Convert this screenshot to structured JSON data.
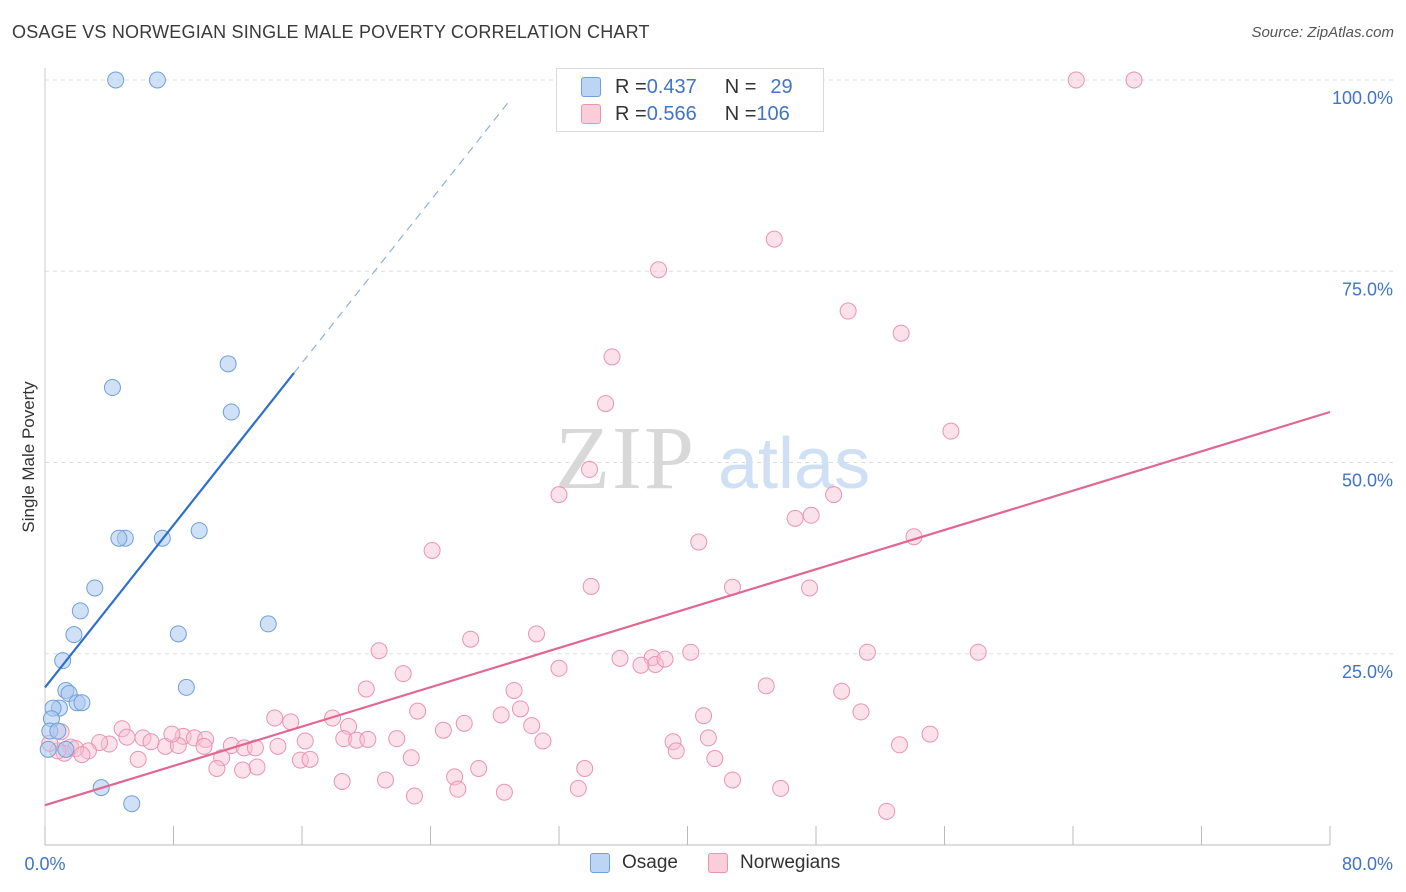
{
  "title": "OSAGE VS NORWEGIAN SINGLE MALE POVERTY CORRELATION CHART",
  "source": "Source: ZipAtlas.com",
  "watermark": {
    "zip": "ZIP",
    "atlas": "atlas"
  },
  "legend_top": {
    "rows": [
      {
        "r_label": "R = ",
        "r_value": "0.437",
        "n_label": "N = ",
        "n_value": "29"
      },
      {
        "r_label": "R = ",
        "r_value": "0.566",
        "n_label": "N = ",
        "n_value": "106"
      }
    ]
  },
  "legend_bottom": {
    "osage": "Osage",
    "norwegians": "Norwegians"
  },
  "colors": {
    "osage_fill": "#a9c8f0",
    "osage_stroke": "#6f9fdc",
    "osage_line": "#2f6fcc",
    "norw_fill": "#f6bfd0",
    "norw_stroke": "#eb93b1",
    "norw_line": "#e06792",
    "tick_label": "#3f74c8",
    "grid": "#dddddd"
  },
  "chart_data": {
    "type": "scatter",
    "xlabel": "",
    "ylabel": "Single Male Poverty",
    "xlim": [
      0,
      80
    ],
    "ylim": [
      0,
      100
    ],
    "x_tick_labels": [
      "0.0%",
      "80.0%"
    ],
    "y_ticks": [
      25,
      50,
      75,
      100
    ],
    "y_tick_labels": [
      "25.0%",
      "50.0%",
      "75.0%",
      "100.0%"
    ],
    "grid": true,
    "legend_position": "top-center",
    "series": [
      {
        "name": "Osage",
        "r": 0.437,
        "n": 29,
        "trend": {
          "x0": 0,
          "y0": 20.6,
          "x1": 15.5,
          "y1": 61.7,
          "extend_to_x": 29
        },
        "points": [
          [
            4.4,
            100
          ],
          [
            7.0,
            100
          ],
          [
            4.2,
            59.8
          ],
          [
            11.4,
            62.9
          ],
          [
            11.6,
            56.6
          ],
          [
            5.0,
            40.1
          ],
          [
            4.6,
            40.1
          ],
          [
            7.3,
            40.1
          ],
          [
            9.6,
            41.1
          ],
          [
            3.1,
            33.6
          ],
          [
            2.2,
            30.6
          ],
          [
            1.8,
            27.5
          ],
          [
            8.3,
            27.6
          ],
          [
            13.9,
            28.9
          ],
          [
            1.1,
            24.1
          ],
          [
            1.3,
            20.2
          ],
          [
            1.5,
            19.8
          ],
          [
            8.8,
            20.6
          ],
          [
            2.0,
            18.6
          ],
          [
            2.3,
            18.6
          ],
          [
            0.9,
            17.9
          ],
          [
            0.5,
            17.9
          ],
          [
            0.4,
            16.5
          ],
          [
            0.3,
            14.9
          ],
          [
            0.8,
            14.9
          ],
          [
            0.2,
            12.5
          ],
          [
            1.3,
            12.5
          ],
          [
            3.5,
            7.5
          ],
          [
            5.4,
            5.4
          ]
        ]
      },
      {
        "name": "Norwegians",
        "r": 0.566,
        "n": 106,
        "trend": {
          "x0": 0,
          "y0": 5.2,
          "x1": 80,
          "y1": 56.6
        },
        "points": [
          [
            64.2,
            100
          ],
          [
            67.8,
            100
          ],
          [
            45.4,
            79.2
          ],
          [
            38.2,
            75.2
          ],
          [
            50.0,
            69.8
          ],
          [
            53.3,
            66.9
          ],
          [
            35.3,
            63.8
          ],
          [
            34.9,
            57.7
          ],
          [
            56.4,
            54.1
          ],
          [
            33.9,
            49.1
          ],
          [
            32.0,
            45.8
          ],
          [
            49.1,
            45.8
          ],
          [
            47.7,
            43.1
          ],
          [
            46.7,
            42.7
          ],
          [
            40.7,
            39.6
          ],
          [
            54.1,
            40.3
          ],
          [
            24.1,
            38.5
          ],
          [
            34.0,
            33.8
          ],
          [
            42.8,
            33.7
          ],
          [
            47.6,
            33.6
          ],
          [
            26.5,
            26.9
          ],
          [
            30.6,
            27.6
          ],
          [
            20.8,
            25.4
          ],
          [
            37.8,
            24.5
          ],
          [
            35.8,
            24.4
          ],
          [
            38.0,
            23.6
          ],
          [
            37.1,
            23.5
          ],
          [
            38.6,
            24.3
          ],
          [
            40.2,
            25.2
          ],
          [
            51.2,
            25.2
          ],
          [
            58.1,
            25.2
          ],
          [
            32.0,
            23.1
          ],
          [
            22.3,
            22.4
          ],
          [
            20.0,
            20.4
          ],
          [
            29.2,
            20.2
          ],
          [
            44.9,
            20.8
          ],
          [
            49.6,
            20.1
          ],
          [
            23.2,
            17.5
          ],
          [
            29.6,
            17.8
          ],
          [
            28.4,
            17.0
          ],
          [
            41.0,
            16.9
          ],
          [
            50.8,
            17.4
          ],
          [
            14.3,
            16.6
          ],
          [
            15.3,
            16.1
          ],
          [
            17.9,
            16.6
          ],
          [
            18.9,
            15.5
          ],
          [
            24.8,
            15.0
          ],
          [
            26.1,
            15.9
          ],
          [
            30.3,
            15.6
          ],
          [
            4.8,
            15.2
          ],
          [
            8.6,
            14.2
          ],
          [
            9.3,
            14.0
          ],
          [
            10.0,
            13.8
          ],
          [
            11.6,
            13.0
          ],
          [
            12.4,
            12.7
          ],
          [
            14.5,
            12.9
          ],
          [
            16.2,
            13.6
          ],
          [
            18.6,
            13.9
          ],
          [
            19.4,
            13.7
          ],
          [
            20.1,
            13.8
          ],
          [
            21.9,
            13.9
          ],
          [
            31.0,
            13.6
          ],
          [
            39.1,
            13.5
          ],
          [
            41.3,
            14.0
          ],
          [
            53.2,
            13.1
          ],
          [
            55.1,
            14.5
          ],
          [
            7.5,
            12.9
          ],
          [
            8.3,
            13.0
          ],
          [
            9.9,
            12.9
          ],
          [
            13.1,
            12.7
          ],
          [
            4.0,
            13.2
          ],
          [
            3.4,
            13.4
          ],
          [
            2.7,
            12.3
          ],
          [
            6.1,
            14.0
          ],
          [
            1.6,
            12.8
          ],
          [
            1.9,
            12.6
          ],
          [
            1.2,
            12.0
          ],
          [
            0.8,
            12.3
          ],
          [
            2.3,
            11.8
          ],
          [
            5.8,
            11.2
          ],
          [
            11.0,
            11.4
          ],
          [
            15.9,
            11.1
          ],
          [
            16.5,
            11.2
          ],
          [
            22.8,
            11.4
          ],
          [
            39.3,
            12.3
          ],
          [
            41.7,
            11.3
          ],
          [
            10.7,
            10.0
          ],
          [
            13.2,
            10.2
          ],
          [
            12.3,
            9.8
          ],
          [
            27.0,
            10.0
          ],
          [
            33.6,
            10.0
          ],
          [
            25.5,
            8.9
          ],
          [
            42.8,
            8.5
          ],
          [
            18.5,
            8.3
          ],
          [
            21.2,
            8.5
          ],
          [
            25.7,
            7.3
          ],
          [
            28.6,
            6.9
          ],
          [
            33.2,
            7.4
          ],
          [
            45.8,
            7.4
          ],
          [
            23.0,
            6.4
          ],
          [
            52.4,
            4.4
          ],
          [
            1.0,
            14.8
          ],
          [
            0.3,
            13.3
          ],
          [
            5.1,
            14.1
          ],
          [
            6.6,
            13.5
          ],
          [
            7.9,
            14.5
          ]
        ]
      }
    ]
  }
}
